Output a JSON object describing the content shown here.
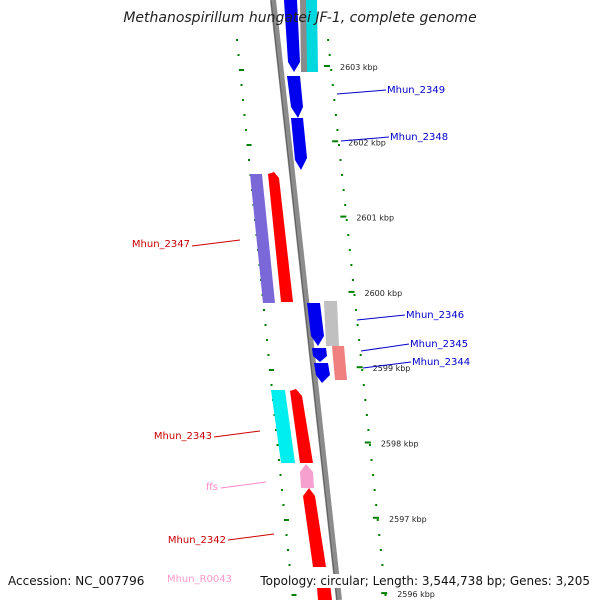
{
  "title": "Methanospirillum hungatei JF-1, complete genome",
  "footer": {
    "accession": "Accession: NC_007796",
    "topology": "Topology: circular; Length: 3,544,738 bp; Genes: 3,205"
  },
  "ruler": {
    "ticks": [
      {
        "label": "2603 kbp",
        "kbp": 2603
      },
      {
        "label": "2602 kbp",
        "kbp": 2602
      },
      {
        "label": "2601 kbp",
        "kbp": 2601
      },
      {
        "label": "2600 kbp",
        "kbp": 2600
      },
      {
        "label": "2599 kbp",
        "kbp": 2599
      },
      {
        "label": "2598 kbp",
        "kbp": 2598
      },
      {
        "label": "2597 kbp",
        "kbp": 2597
      },
      {
        "label": "2596 kbp",
        "kbp": 2596
      }
    ]
  },
  "features": [
    {
      "label": "Mhun_2349",
      "color": "#0000cc",
      "strand": "reverse",
      "track": "inner-cds"
    },
    {
      "label": "Mhun_2348",
      "color": "#0000cc",
      "strand": "reverse",
      "track": "inner-cds"
    },
    {
      "label": "Mhun_2347",
      "color": "#cc0000",
      "strand": "forward",
      "track": "outer-cds"
    },
    {
      "label": "Mhun_2346",
      "color": "#0000cc",
      "strand": "reverse",
      "track": "inner-cds"
    },
    {
      "label": "Mhun_2345",
      "color": "#0000cc",
      "strand": "reverse",
      "track": "inner-cds"
    },
    {
      "label": "Mhun_2344",
      "color": "#0000cc",
      "strand": "reverse",
      "track": "inner-cds"
    },
    {
      "label": "Mhun_2343",
      "color": "#cc0000",
      "strand": "forward",
      "track": "outer-cds"
    },
    {
      "label": "ffs",
      "color": "#ff88c8",
      "strand": "forward",
      "track": "outer-rna"
    },
    {
      "label": "Mhun_2342",
      "color": "#cc0000",
      "strand": "forward",
      "track": "outer-cds"
    },
    {
      "label": "Mhun_R0043",
      "color": "#ff99cc",
      "strand": "forward",
      "track": "outer-rna"
    }
  ],
  "colors": {
    "backbone": "#8c8c8c",
    "forward_cds": "#ff0000",
    "reverse_cds": "#0000ff",
    "cog_cyan": "#00e5ee",
    "cog_purple": "#7b68d8",
    "cog_gray": "#bfbfbf",
    "cog_salmon": "#f08080",
    "rna": "#f6a0d0",
    "gc_dots": "#008000"
  }
}
